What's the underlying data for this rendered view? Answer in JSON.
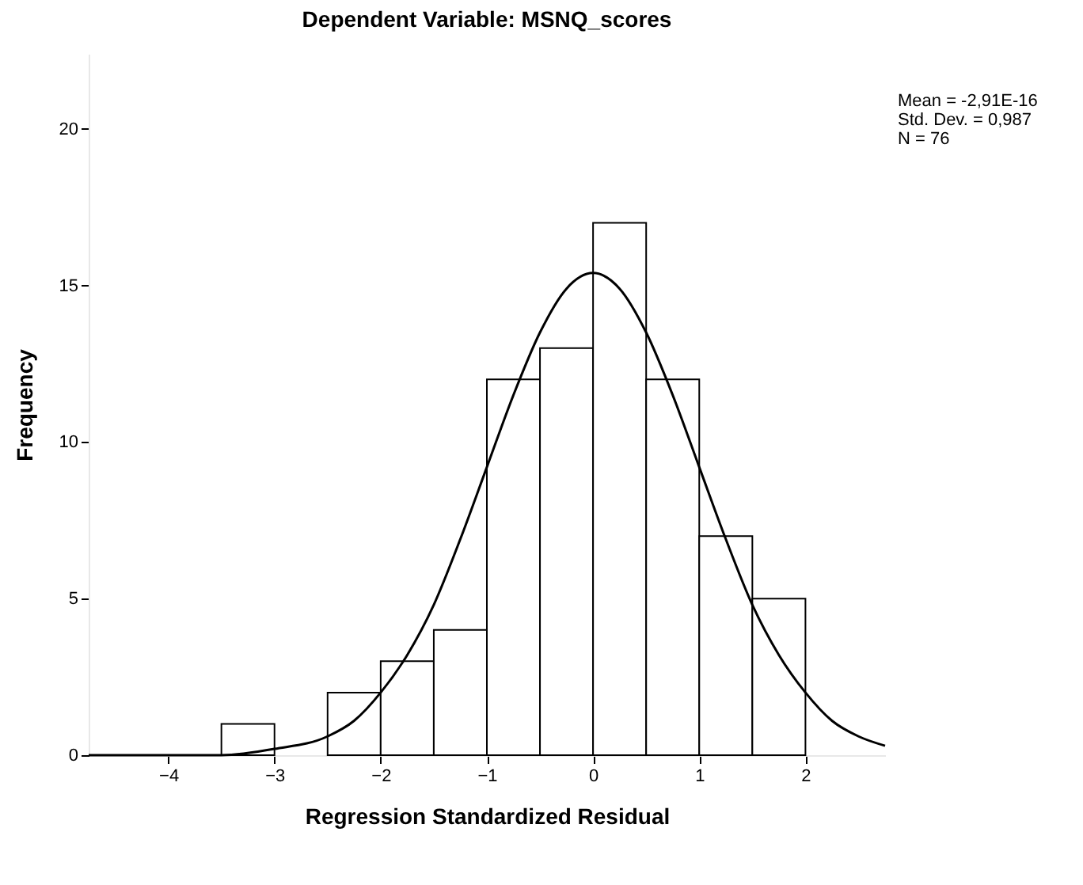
{
  "chart_data": {
    "type": "histogram",
    "title": "Dependent Variable: MSNQ_scores",
    "xlabel": "Regression Standardized Residual",
    "ylabel": "Frequency",
    "bins": [
      -3.5,
      -3,
      -2.5,
      -2,
      -1.5,
      -1,
      -0.5,
      0,
      0.5,
      1,
      1.5,
      2
    ],
    "values": [
      1,
      0,
      2,
      3,
      4,
      12,
      13,
      17,
      12,
      7,
      5
    ],
    "color": "#ffffff",
    "series": [
      {
        "type": "line",
        "color": "#000000",
        "x": [
          -4.75,
          -4,
          -3.5,
          -3,
          -2.5,
          -2.25,
          -2,
          -1.75,
          -1.5,
          -1.25,
          -1,
          -0.75,
          -0.5,
          -0.25,
          0,
          0.25,
          0.5,
          0.75,
          1,
          1.25,
          1.5,
          1.75,
          2,
          2.25,
          2.5,
          2.75
        ],
        "values": [
          0,
          0,
          0,
          0.2,
          0.6,
          1.1,
          2,
          3.2,
          4.8,
          6.9,
          9.2,
          11.5,
          13.5,
          14.9,
          15.4,
          14.9,
          13.5,
          11.5,
          9.2,
          6.9,
          4.8,
          3.2,
          2,
          1.1,
          0.6,
          0.3
        ]
      }
    ],
    "annotations": [
      "Mean = -2,91E-16",
      "Std. Dev. = 0,987",
      "N = 76"
    ],
    "xlim": [
      -4.75,
      2.75
    ],
    "xticks": [
      -4,
      -3,
      -2,
      -1,
      0,
      1,
      2
    ],
    "ylim": [
      0,
      22.4
    ],
    "yticks": [
      0,
      5,
      10,
      15,
      20
    ]
  }
}
